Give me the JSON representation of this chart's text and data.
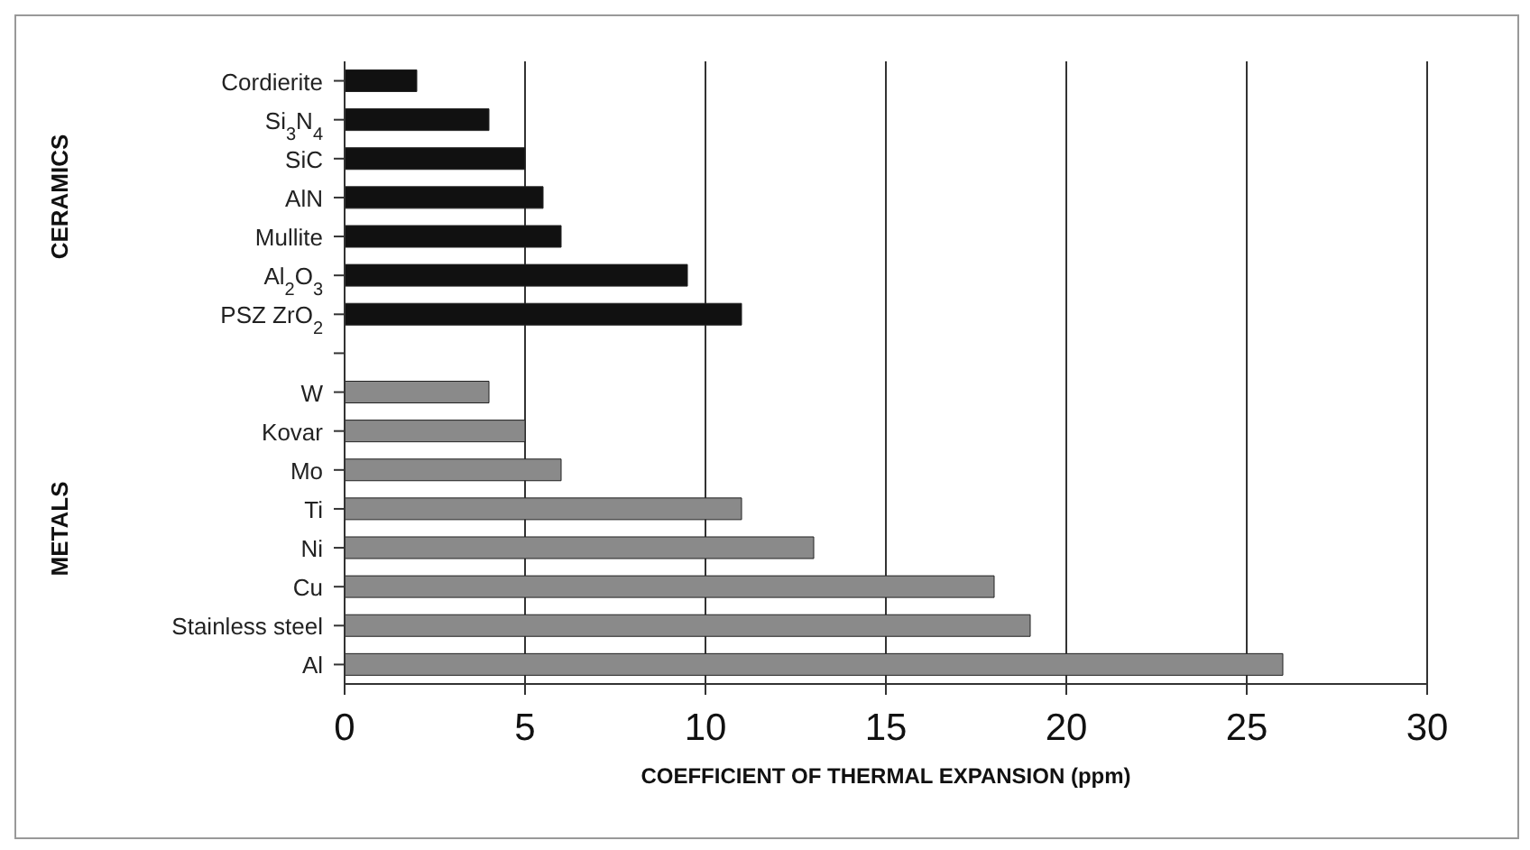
{
  "chart_data": {
    "type": "bar",
    "orientation": "horizontal",
    "xlabel": "COEFFICIENT OF THERMAL EXPANSION (ppm)",
    "categories": [
      "Cordierite",
      "Si$_{3}$N$_{4}$",
      "SiC",
      "AlN",
      "Mullite",
      "Al$_{2}$O$_{3}$",
      "PSZ ZrO$_{2}$",
      null,
      "W",
      "Kovar",
      "Mo",
      "Ti",
      "Ni",
      "Cu",
      "Stainless steel",
      "Al"
    ],
    "values": [
      2,
      4,
      5,
      5.5,
      6,
      9.5,
      11,
      null,
      4,
      5,
      6,
      11,
      13,
      18,
      19,
      26
    ],
    "colors": [
      "#111111",
      "#111111",
      "#111111",
      "#111111",
      "#111111",
      "#111111",
      "#111111",
      "#111111",
      "#8a8a8a",
      "#8a8a8a",
      "#8a8a8a",
      "#8a8a8a",
      "#8a8a8a",
      "#8a8a8a",
      "#8a8a8a",
      "#8a8a8a"
    ],
    "xlim": [
      0,
      30
    ],
    "xticks": [
      0,
      5,
      10,
      15,
      20,
      25,
      30
    ],
    "grid": "x",
    "annotations": [
      "CERAMICS",
      "METALS"
    ]
  }
}
